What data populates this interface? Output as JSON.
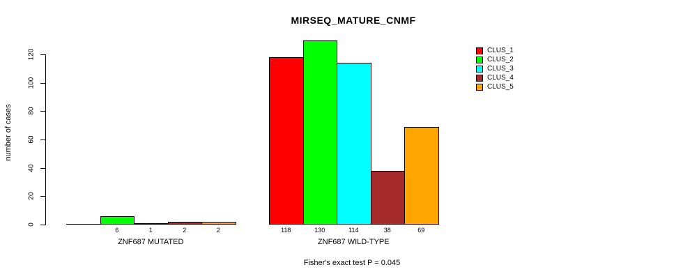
{
  "title": "MIRSEQ_MATURE_CNMF",
  "chart_data": {
    "type": "bar",
    "title": "MIRSEQ_MATURE_CNMF",
    "xlabel": "",
    "ylabel": "number of cases",
    "ylim": [
      0,
      130
    ],
    "yticks": [
      0,
      20,
      40,
      60,
      80,
      100,
      120
    ],
    "grid": false,
    "legend_position": "right",
    "categories": [
      "ZNF687 MUTATED",
      "ZNF687 WILD-TYPE"
    ],
    "series": [
      {
        "name": "CLUS_1",
        "color": "#FF0000",
        "values": [
          0,
          118
        ]
      },
      {
        "name": "CLUS_2",
        "color": "#00FF00",
        "values": [
          6,
          130
        ]
      },
      {
        "name": "CLUS_3",
        "color": "#00FFFF",
        "values": [
          1,
          114
        ]
      },
      {
        "name": "CLUS_4",
        "color": "#A52A2A",
        "values": [
          2,
          38
        ]
      },
      {
        "name": "CLUS_5",
        "color": "#FFA500",
        "values": [
          2,
          69
        ]
      }
    ],
    "groups": [
      {
        "label": "ZNF687 MUTATED",
        "values": [
          0,
          6,
          1,
          2,
          2
        ],
        "bar_labels": [
          "",
          "6",
          "1",
          "2",
          "2"
        ]
      },
      {
        "label": "ZNF687 WILD-TYPE",
        "values": [
          118,
          130,
          114,
          38,
          69
        ],
        "bar_labels": [
          "118",
          "130",
          "114",
          "38",
          "69"
        ]
      }
    ],
    "series_colors": [
      "#FF0000",
      "#00FF00",
      "#00FFFF",
      "#A52A2A",
      "#FFA500"
    ],
    "legend": [
      {
        "label": "CLUS_1",
        "color": "#FF0000"
      },
      {
        "label": "CLUS_2",
        "color": "#00FF00"
      },
      {
        "label": "CLUS_3",
        "color": "#00FFFF"
      },
      {
        "label": "CLUS_4",
        "color": "#A52A2A"
      },
      {
        "label": "CLUS_5",
        "color": "#FFA500"
      }
    ],
    "annotation": "Fisher's exact test P = 0.045"
  }
}
